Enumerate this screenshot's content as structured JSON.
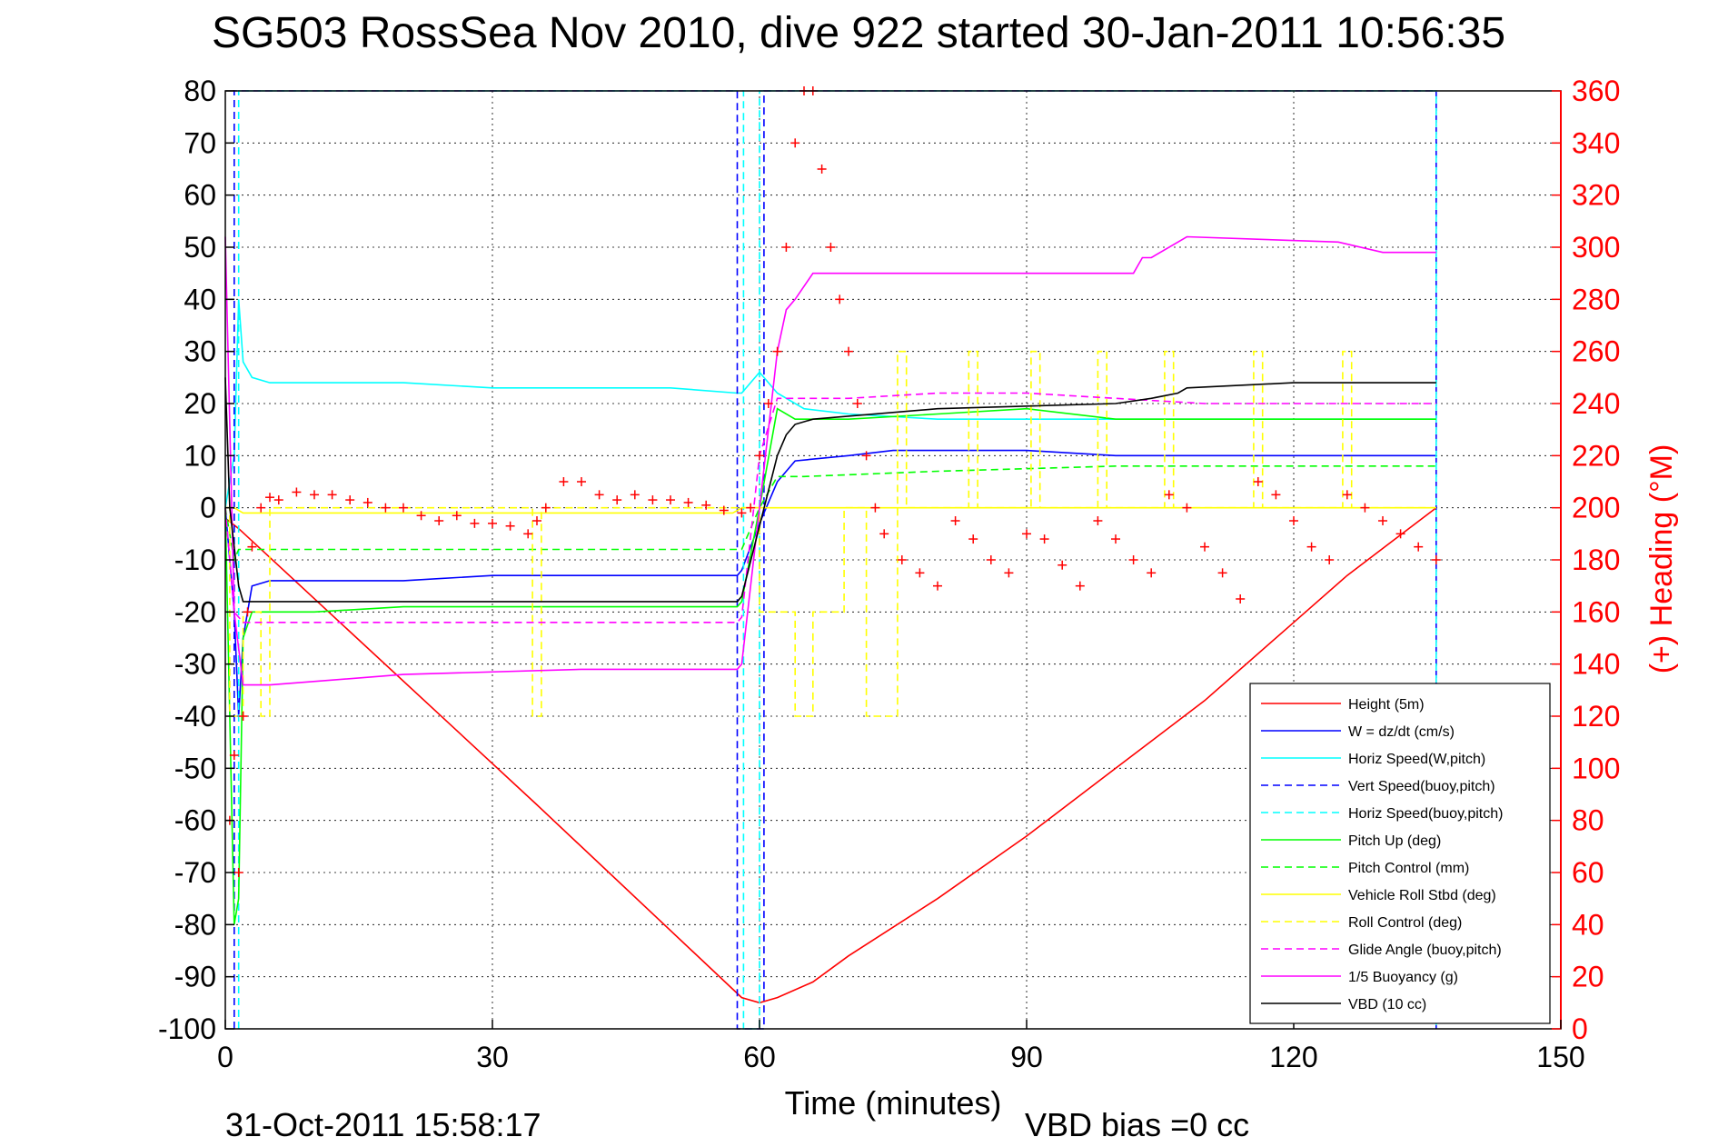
{
  "chart_data": {
    "type": "line",
    "title": "SG503 RossSea Nov 2010, dive 922 started 30-Jan-2011 10:56:35",
    "xlabel": "Time (minutes)",
    "ylabel_right": "(+) Heading (°M)",
    "footer_left": "31-Oct-2011 15:58:17",
    "footer_right": "VBD bias =0 cc",
    "xlim": [
      0,
      150
    ],
    "ylim": [
      -100,
      80
    ],
    "ylim_right": [
      0,
      360
    ],
    "xticks": [
      0,
      30,
      60,
      90,
      120,
      150
    ],
    "yticks": [
      80,
      70,
      60,
      50,
      40,
      30,
      20,
      10,
      0,
      -10,
      -20,
      -30,
      -40,
      -50,
      -60,
      -70,
      -80,
      -90,
      -100
    ],
    "yticks_right": [
      360,
      340,
      320,
      300,
      280,
      260,
      240,
      220,
      200,
      180,
      160,
      140,
      120,
      100,
      80,
      60,
      40,
      20,
      0
    ],
    "grid": true,
    "legend_position": "bottom-right",
    "series": [
      {
        "name": "Height (5m)",
        "color": "#ff0000",
        "dash": "solid",
        "x": [
          0,
          1.5,
          35,
          58,
          60,
          62,
          66,
          70,
          80,
          90,
          100,
          110,
          120,
          126,
          136
        ],
        "y": [
          -2,
          -4,
          -57,
          -94,
          -95,
          -94,
          -91,
          -86,
          -75,
          -63,
          -50,
          -37,
          -22,
          -13,
          0
        ]
      },
      {
        "name": "W = dz/dt (cm/s)",
        "color": "#0000ff",
        "dash": "solid",
        "x": [
          0,
          1,
          1.5,
          2,
          3,
          5,
          8,
          15,
          20,
          30,
          40,
          50,
          57.5,
          58,
          60,
          62,
          64,
          70,
          75,
          80,
          90,
          100,
          105,
          110,
          120,
          130,
          136
        ],
        "y": [
          0,
          -20,
          -40,
          -25,
          -15,
          -14,
          -14,
          -14,
          -14,
          -13,
          -13,
          -13,
          -13,
          -12,
          -3,
          5,
          9,
          10,
          11,
          11,
          11,
          10,
          10,
          10,
          10,
          10,
          10
        ]
      },
      {
        "name": "Horiz Speed(W,pitch)",
        "color": "#00ffff",
        "dash": "solid",
        "x": [
          0,
          1,
          1.5,
          2,
          3,
          5,
          10,
          20,
          30,
          40,
          50,
          57.5,
          58,
          60,
          62,
          65,
          70,
          80,
          90,
          100,
          110,
          120,
          130,
          136
        ],
        "y": [
          0,
          10,
          40,
          28,
          25,
          24,
          24,
          24,
          23,
          23,
          23,
          22,
          22,
          26,
          22,
          19,
          18,
          17,
          17,
          17,
          17,
          17,
          17,
          17
        ]
      },
      {
        "name": "Vert Speed(buoy,pitch)",
        "color": "#0000ff",
        "dash": "dashed",
        "x": [
          1,
          1,
          57.5,
          57.5,
          60.5,
          60.5,
          136,
          136
        ],
        "y": [
          -100,
          80,
          80,
          -100,
          -100,
          80,
          80,
          -100
        ]
      },
      {
        "name": "Horiz Speed(buoy,pitch)",
        "color": "#00ffff",
        "dash": "dashed",
        "x": [
          1.5,
          1.5,
          58.2,
          58.2,
          60,
          60,
          136,
          136
        ],
        "y": [
          -100,
          80,
          80,
          -100,
          -100,
          80,
          80,
          -100
        ]
      },
      {
        "name": "Pitch Up (deg)",
        "color": "#00ff00",
        "dash": "solid",
        "x": [
          0,
          1,
          1.5,
          2,
          3,
          10,
          20,
          30,
          40,
          50,
          57.5,
          58,
          60,
          62,
          64,
          70,
          80,
          90,
          100,
          110,
          120,
          130,
          136
        ],
        "y": [
          0,
          -80,
          -75,
          -25,
          -20,
          -20,
          -19,
          -19,
          -19,
          -19,
          -19,
          -18,
          0,
          19,
          17,
          17,
          18,
          19,
          17,
          17,
          17,
          17,
          17
        ]
      },
      {
        "name": "Pitch Control (mm)",
        "color": "#00ff00",
        "dash": "dashed",
        "x": [
          0,
          1,
          1.5,
          2,
          57.5,
          58,
          60,
          62,
          65,
          80,
          100,
          120,
          136
        ],
        "y": [
          0,
          -10,
          -8,
          -8,
          -8,
          -8,
          0,
          6,
          6,
          7,
          8,
          8,
          8
        ]
      },
      {
        "name": "Vehicle Roll Stbd (deg)",
        "color": "#ffff00",
        "dash": "solid",
        "x": [
          0,
          1,
          2,
          3,
          10,
          30,
          57,
          58,
          60,
          64,
          80,
          100,
          120,
          136
        ],
        "y": [
          0,
          0,
          -1,
          -1,
          -1,
          -1,
          -1,
          0,
          0,
          0,
          0,
          0,
          0,
          0
        ]
      },
      {
        "name": "Roll Control (deg)",
        "color": "#ffff00",
        "dash": "dashed",
        "x": [
          0,
          0.5,
          0.5,
          2,
          2,
          4,
          4,
          5,
          5,
          34.5,
          34.5,
          35.5,
          35.5,
          60,
          60,
          64,
          64,
          66,
          66,
          69.5,
          69.5,
          72,
          72,
          75.5,
          75.5,
          76.5,
          76.5,
          83.5,
          83.5,
          84.5,
          84.5,
          90.5,
          90.5,
          91.5,
          91.5,
          98,
          98,
          99,
          99,
          105.5,
          105.5,
          106.5,
          106.5,
          115.5,
          115.5,
          116.5,
          116.5,
          125.5,
          125.5,
          126.5,
          126.5,
          136
        ],
        "y": [
          0,
          0,
          -40,
          -40,
          -20,
          -20,
          -40,
          -40,
          0,
          0,
          -40,
          -40,
          0,
          0,
          -20,
          -20,
          -40,
          -40,
          -20,
          -20,
          0,
          0,
          -40,
          -40,
          30,
          30,
          0,
          0,
          30,
          30,
          0,
          0,
          30,
          30,
          0,
          0,
          30,
          30,
          0,
          0,
          30,
          30,
          0,
          0,
          30,
          30,
          0,
          0,
          30,
          30,
          0,
          0
        ]
      },
      {
        "name": "Glide Angle (buoy,pitch)",
        "color": "#ff00ff",
        "dash": "dashed",
        "x": [
          0,
          1,
          2,
          5,
          20,
          40,
          57.5,
          58,
          60,
          62,
          70,
          80,
          90,
          100,
          110,
          120,
          136
        ],
        "y": [
          0,
          -20,
          -22,
          -22,
          -22,
          -22,
          -22,
          -21,
          10,
          21,
          21,
          22,
          22,
          21,
          20,
          20,
          20
        ]
      },
      {
        "name": "1/5 Buoyancy (g)",
        "color": "#ff00ff",
        "dash": "solid",
        "x": [
          0,
          1,
          2,
          5,
          20,
          40,
          57.5,
          58,
          60,
          62,
          63,
          64,
          66,
          70,
          90,
          102,
          103,
          104,
          107,
          108,
          125,
          130,
          136
        ],
        "y": [
          52,
          -20,
          -34,
          -34,
          -32,
          -31,
          -31,
          -30,
          0,
          30,
          38,
          40,
          45,
          45,
          45,
          45,
          48,
          48,
          51,
          52,
          51,
          49,
          49
        ]
      },
      {
        "name": "VBD (10 cc)",
        "color": "#000000",
        "dash": "solid",
        "x": [
          0,
          0.5,
          1.5,
          2,
          57.5,
          58,
          62,
          63,
          64,
          66,
          80,
          100,
          104,
          107,
          108,
          120,
          136
        ],
        "y": [
          25,
          0,
          -15,
          -18,
          -18,
          -17,
          10,
          14,
          16,
          17,
          19,
          20,
          21,
          22,
          23,
          24,
          24
        ]
      }
    ],
    "heading_series": {
      "name": "(+) Heading (°M)",
      "color": "#ff0000",
      "marker": "+",
      "x": [
        0.5,
        1,
        1.5,
        2,
        2.5,
        3,
        4,
        5,
        6,
        8,
        10,
        12,
        14,
        16,
        18,
        20,
        22,
        24,
        26,
        28,
        30,
        32,
        34,
        35,
        36,
        38,
        40,
        42,
        44,
        46,
        48,
        50,
        52,
        54,
        56,
        58,
        59,
        60,
        61,
        62,
        63,
        64,
        65,
        66,
        67,
        68,
        69,
        70,
        71,
        72,
        73,
        74,
        76,
        78,
        80,
        82,
        84,
        86,
        88,
        90,
        92,
        94,
        96,
        98,
        100,
        102,
        104,
        106,
        108,
        110,
        112,
        114,
        116,
        118,
        120,
        122,
        124,
        126,
        128,
        130,
        132,
        134,
        136
      ],
      "y": [
        80,
        105,
        60,
        120,
        160,
        185,
        200,
        204,
        203,
        206,
        205,
        205,
        203,
        202,
        200,
        200,
        197,
        195,
        197,
        194,
        194,
        193,
        190,
        195,
        200,
        210,
        210,
        205,
        203,
        205,
        203,
        203,
        202,
        201,
        199,
        198,
        200,
        220,
        240,
        260,
        300,
        340,
        360,
        360,
        330,
        300,
        280,
        260,
        240,
        220,
        200,
        190,
        180,
        175,
        170,
        195,
        188,
        180,
        175,
        190,
        188,
        178,
        170,
        195,
        188,
        180,
        175,
        205,
        200,
        185,
        175,
        165,
        210,
        205,
        195,
        185,
        180,
        205,
        200,
        195,
        190,
        185,
        180
      ]
    }
  }
}
